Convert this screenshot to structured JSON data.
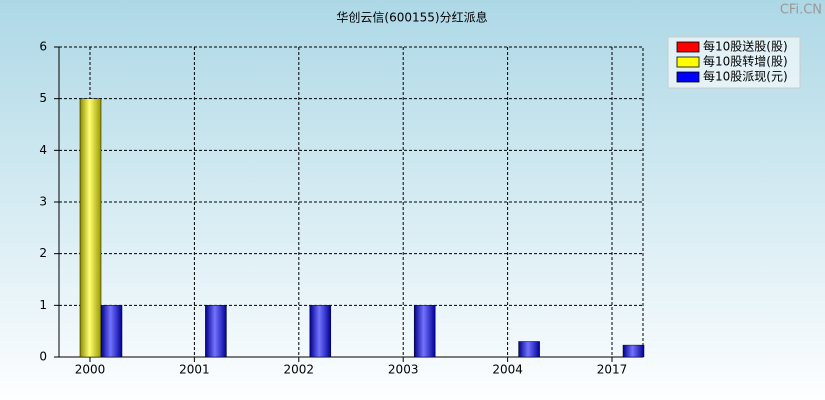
{
  "chart_data": {
    "type": "bar",
    "title": "华创云信(600155)分红派息",
    "watermark": "CFi.CN",
    "categories": [
      "2000",
      "2001",
      "2002",
      "2003",
      "2004",
      "2017"
    ],
    "series": [
      {
        "name": "每10股送股(股)",
        "color": "#ff0000",
        "values": [
          null,
          null,
          null,
          null,
          null,
          null
        ]
      },
      {
        "name": "每10股转增(股)",
        "color": "#ffff00",
        "values": [
          5,
          null,
          null,
          null,
          null,
          null
        ]
      },
      {
        "name": "每10股派现(元)",
        "color": "#0000ff",
        "values": [
          1,
          1,
          1,
          1,
          0.3,
          0.23
        ]
      }
    ],
    "ylim": [
      0,
      6
    ],
    "yticks": [
      0,
      1,
      2,
      3,
      4,
      5,
      6
    ],
    "grid": true,
    "legend": "top-right"
  }
}
